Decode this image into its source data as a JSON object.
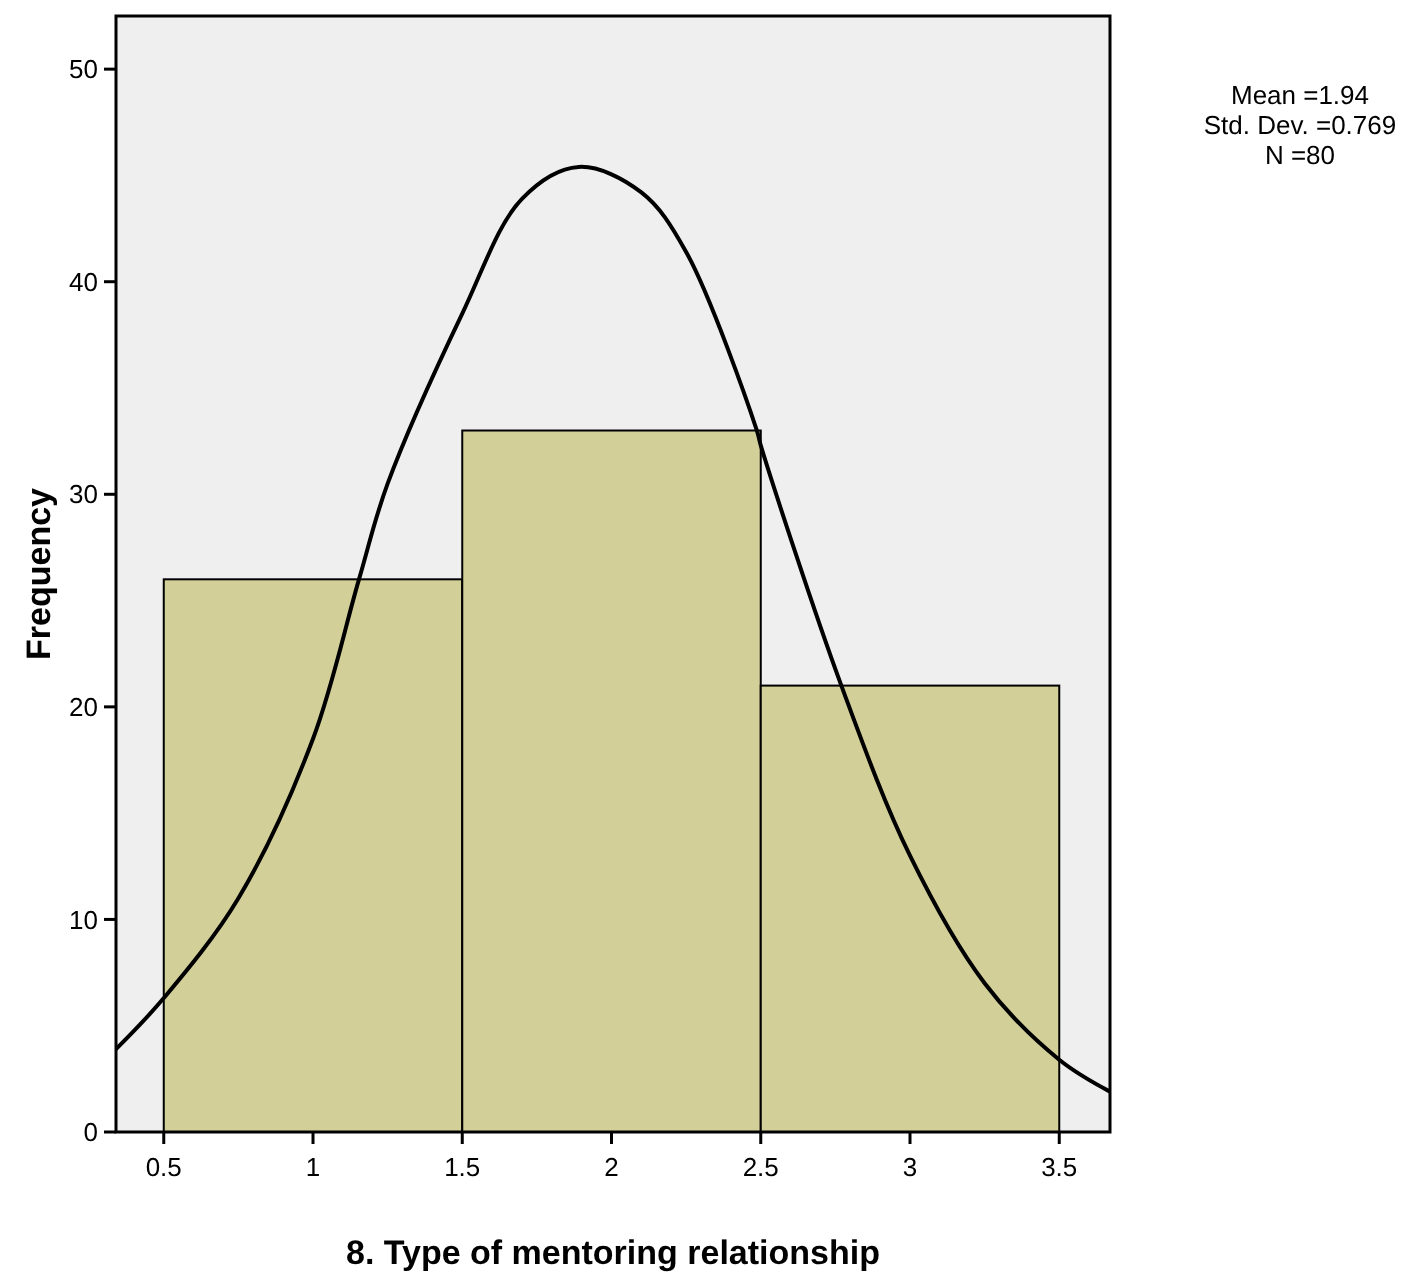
{
  "chart_data": {
    "type": "histogram",
    "xlabel": "8. Type of mentoring relationship",
    "ylabel": "Frequency",
    "xlim": [
      0.34,
      3.67
    ],
    "ylim": [
      0,
      52.5
    ],
    "xticks": [
      0.5,
      1,
      1.5,
      2,
      2.5,
      3,
      3.5
    ],
    "yticks": [
      0,
      10,
      20,
      30,
      40,
      50
    ],
    "grid": false,
    "annotations": [
      "Mean =1.94",
      "Std. Dev. =0.769",
      "N =80"
    ],
    "series": [
      {
        "color": "#d3cf98",
        "bins": [
          0.5,
          1.5,
          2.5,
          3.5
        ],
        "values": [
          26,
          33,
          21
        ]
      },
      {
        "type": "line",
        "color": "#000000",
        "x": [
          0.34,
          0.5,
          0.75,
          1,
          1.154,
          1.25,
          1.5,
          1.7,
          1.89,
          2.1,
          2.25,
          2.487,
          2.5,
          2.77,
          3,
          3.25,
          3.5,
          3.67
        ],
        "values": [
          3.9,
          6.3,
          11,
          18.5,
          26,
          30.5,
          38.5,
          43.9,
          45.4,
          44.2,
          41.4,
          33,
          32.3,
          21,
          13,
          7,
          3.4,
          1.9
        ]
      }
    ]
  }
}
